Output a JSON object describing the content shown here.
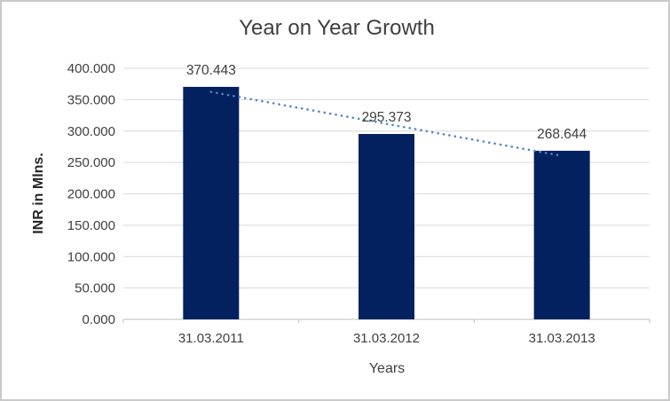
{
  "window": {
    "background": "#FFFFFF",
    "border_color": "#C9C9C9"
  },
  "chart_data": {
    "type": "bar",
    "title": "Year on Year Growth",
    "categories": [
      "31.03.2011",
      "31.03.2012",
      "31.03.2013"
    ],
    "values": [
      370.443,
      295.373,
      268.644
    ],
    "data_labels": [
      "370.443",
      "295.373",
      "268.644"
    ],
    "xlabel": "Years",
    "ylabel": "INR in Mlns.",
    "ylim": [
      0,
      400
    ],
    "ytick_step": 50,
    "ytick_labels": [
      "0.000",
      "50.000",
      "100.000",
      "150.000",
      "200.000",
      "250.000",
      "300.000",
      "350.000",
      "400.000"
    ],
    "grid": true,
    "legend": false,
    "trendline": {
      "type": "linear",
      "line_style": "dotted",
      "color": "#4E86C8",
      "fitted_values": [
        362.39,
        311.49,
        260.59
      ]
    },
    "colors": {
      "bar": "#02215E",
      "trendline": "#4E86C8",
      "gridline": "#D9D9D9",
      "axis": "#BFBFBF",
      "text": "#404040"
    }
  }
}
